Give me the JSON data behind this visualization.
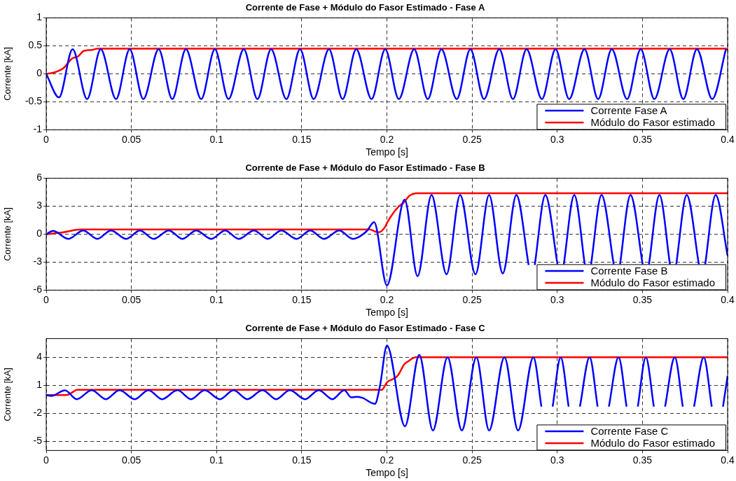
{
  "chart_data": [
    {
      "type": "line",
      "title": "Corrente de Fase + Módulo do Fasor Estimado - Fase A",
      "xlabel": "Tempo [s]",
      "ylabel": "Corrente [kA]",
      "xlim": [
        0,
        0.4
      ],
      "xticks": [
        0,
        0.05,
        0.1,
        0.15,
        0.2,
        0.25,
        0.3,
        0.35,
        0.4
      ],
      "ylim": [
        -1,
        1
      ],
      "yticks": [
        -1,
        -0.5,
        0,
        0.5,
        1
      ],
      "grid": true,
      "legend": "bottom right",
      "series": [
        {
          "name": "Corrente Fase A",
          "color": "#0000ff",
          "x": [
            0,
            0.0075,
            0.0155,
            0.024,
            0.032,
            0.041,
            0.049,
            0.057,
            0.066,
            0.074,
            0.082,
            0.091,
            0.099,
            0.107,
            0.116,
            0.124,
            0.132,
            0.141,
            0.149,
            0.157,
            0.166,
            0.174,
            0.182,
            0.191,
            0.199,
            0.207,
            0.216,
            0.224,
            0.232,
            0.241,
            0.249,
            0.257,
            0.266,
            0.274,
            0.282,
            0.291,
            0.299,
            0.307,
            0.316,
            0.324,
            0.332,
            0.341,
            0.349,
            0.357,
            0.366,
            0.374,
            0.382,
            0.391,
            0.399
          ],
          "values": [
            0,
            -0.42,
            0.44,
            -0.45,
            0.44,
            -0.45,
            0.44,
            -0.45,
            0.44,
            -0.45,
            0.44,
            -0.45,
            0.44,
            -0.45,
            0.44,
            -0.45,
            0.44,
            -0.45,
            0.44,
            -0.45,
            0.44,
            -0.45,
            0.44,
            -0.45,
            0.44,
            -0.45,
            0.44,
            -0.45,
            0.44,
            -0.45,
            0.44,
            -0.45,
            0.44,
            -0.45,
            0.44,
            -0.45,
            0.44,
            -0.45,
            0.44,
            -0.45,
            0.44,
            -0.45,
            0.44,
            -0.45,
            0.44,
            -0.45,
            0.44,
            -0.45,
            0.44
          ]
        },
        {
          "name": "Módulo do Fasor estimado",
          "color": "#ff0000",
          "x": [
            0,
            0.004,
            0.01,
            0.015,
            0.019,
            0.022,
            0.027,
            0.03,
            0.399,
            0.4
          ],
          "values": [
            0,
            0.02,
            0.1,
            0.27,
            0.32,
            0.41,
            0.43,
            0.45,
            0.45,
            0.43
          ]
        }
      ]
    },
    {
      "type": "line",
      "title": "Corrente de Fase + Módulo do Fasor Estimado - Fase B",
      "xlabel": "Tempo [s]",
      "ylabel": "Corrente [kA]",
      "xlim": [
        0,
        0.4
      ],
      "xticks": [
        0,
        0.05,
        0.1,
        0.15,
        0.2,
        0.25,
        0.3,
        0.35,
        0.4
      ],
      "ylim": [
        -6,
        6
      ],
      "yticks": [
        -6,
        -3,
        0,
        3,
        6
      ],
      "grid": true,
      "legend": "bottom right",
      "series": [
        {
          "name": "Corrente Fase B",
          "color": "#0000ff",
          "x": [
            0,
            0.004,
            0.013,
            0.0217,
            0.03,
            0.038,
            0.047,
            0.055,
            0.063,
            0.072,
            0.08,
            0.088,
            0.097,
            0.105,
            0.113,
            0.122,
            0.13,
            0.138,
            0.147,
            0.155,
            0.163,
            0.172,
            0.18,
            0.188,
            0.1925,
            0.2,
            0.2104,
            0.218,
            0.2262,
            0.235,
            0.243,
            0.252,
            0.26,
            0.268,
            0.276,
            0.2832,
            0.285,
            0.2868,
            0.293,
            0.3002,
            0.302,
            0.3038,
            0.31,
            0.3162,
            0.318,
            0.3198,
            0.326,
            0.3332,
            0.335,
            0.3368,
            0.343,
            0.3502,
            0.352,
            0.3538,
            0.36,
            0.3662,
            0.368,
            0.3698,
            0.376,
            0.3832,
            0.385,
            0.3868,
            0.393,
            0.4
          ],
          "values": [
            0,
            0.35,
            -0.5,
            0.4,
            -0.5,
            0.4,
            -0.5,
            0.4,
            -0.5,
            0.4,
            -0.5,
            0.4,
            -0.5,
            0.4,
            -0.5,
            0.4,
            -0.5,
            0.4,
            -0.5,
            0.4,
            -0.5,
            0.4,
            -0.5,
            0.3,
            1.3,
            -5.5,
            3.7,
            -4.5,
            4.2,
            -4.3,
            4.2,
            -4.3,
            4.2,
            -4.2,
            4.2,
            -3.3,
            null,
            -3.3,
            4.2,
            -3.3,
            null,
            -3.3,
            4.2,
            -3.3,
            null,
            -3.3,
            4.2,
            -3.3,
            null,
            -3.3,
            4.2,
            -3.3,
            null,
            -3.3,
            4.2,
            -3.3,
            null,
            -3.3,
            4.2,
            -3.3,
            null,
            -3.3,
            4.2,
            -2.3
          ]
        },
        {
          "name": "Módulo do Fasor estimado",
          "color": "#ff0000",
          "x": [
            0,
            0.01,
            0.02,
            0.19,
            0.193,
            0.195,
            0.199,
            0.2,
            0.207,
            0.21,
            0.213,
            0.218,
            0.4
          ],
          "values": [
            0,
            0.2,
            0.5,
            0.5,
            0.3,
            0.2,
            0.8,
            1.2,
            3.0,
            3.4,
            4.1,
            4.4,
            4.4
          ]
        }
      ]
    },
    {
      "type": "line",
      "title": "Corrente de Fase + Módulo do Fasor Estimado - Fase C",
      "xlabel": "Tempo [s]",
      "ylabel": "Corrente [kA]",
      "xlim": [
        0,
        0.4
      ],
      "xticks": [
        0,
        0.05,
        0.1,
        0.15,
        0.2,
        0.25,
        0.3,
        0.35,
        0.4
      ],
      "ylim": [
        -6,
        6
      ],
      "yticks": [
        -5,
        -2,
        1,
        4
      ],
      "grid": true,
      "legend": "bottom right",
      "series": [
        {
          "name": "Corrente Fase C",
          "color": "#0000ff",
          "x": [
            0,
            0.003,
            0.011,
            0.018,
            0.0267,
            0.035,
            0.043,
            0.052,
            0.06,
            0.068,
            0.077,
            0.085,
            0.093,
            0.102,
            0.11,
            0.118,
            0.127,
            0.135,
            0.143,
            0.152,
            0.16,
            0.168,
            0.175,
            0.179,
            0.182,
            0.1855,
            0.193,
            0.196,
            0.2,
            0.2106,
            0.219,
            0.227,
            0.2356,
            0.244,
            0.2525,
            0.26,
            0.269,
            0.277,
            0.286,
            0.2907,
            0.294,
            0.2973,
            0.302,
            0.3067,
            0.31,
            0.3133,
            0.319,
            0.3237,
            0.327,
            0.3303,
            0.336,
            0.3407,
            0.344,
            0.3473,
            0.352,
            0.3567,
            0.36,
            0.3633,
            0.369,
            0.3737,
            0.377,
            0.3803,
            0.386,
            0.3907,
            0.394,
            0.3973,
            0.4
          ],
          "values": [
            -0.05,
            -0.15,
            0.45,
            -0.5,
            0.47,
            -0.5,
            0.47,
            -0.5,
            0.47,
            -0.5,
            0.47,
            -0.5,
            0.47,
            -0.5,
            0.47,
            -0.5,
            0.47,
            -0.5,
            0.47,
            -0.5,
            0.47,
            -0.5,
            0.47,
            -0.3,
            -0.25,
            -0.35,
            -1.0,
            1.0,
            5.25,
            -3.4,
            4.25,
            -3.85,
            4.0,
            -3.85,
            4.0,
            -3.85,
            4.0,
            -3.85,
            4.0,
            -1.3,
            null,
            -1.3,
            4.0,
            -1.3,
            null,
            -1.3,
            4.0,
            -1.3,
            null,
            -1.3,
            4.0,
            -1.3,
            null,
            -1.3,
            4.0,
            -1.3,
            null,
            -1.3,
            4.0,
            -1.3,
            null,
            -1.3,
            4.0,
            -1.3,
            null,
            -1.3,
            2.0
          ]
        },
        {
          "name": "Módulo do Fasor estimado",
          "color": "#ff0000",
          "x": [
            0,
            0.012,
            0.015,
            0.018,
            0.197,
            0.2,
            0.205,
            0.207,
            0.21,
            0.212,
            0.217,
            0.4
          ],
          "values": [
            -0.05,
            -0.05,
            0.2,
            0.5,
            0.5,
            1.3,
            1.8,
            2.2,
            3.2,
            3.5,
            4.0,
            4.0
          ]
        }
      ]
    }
  ]
}
